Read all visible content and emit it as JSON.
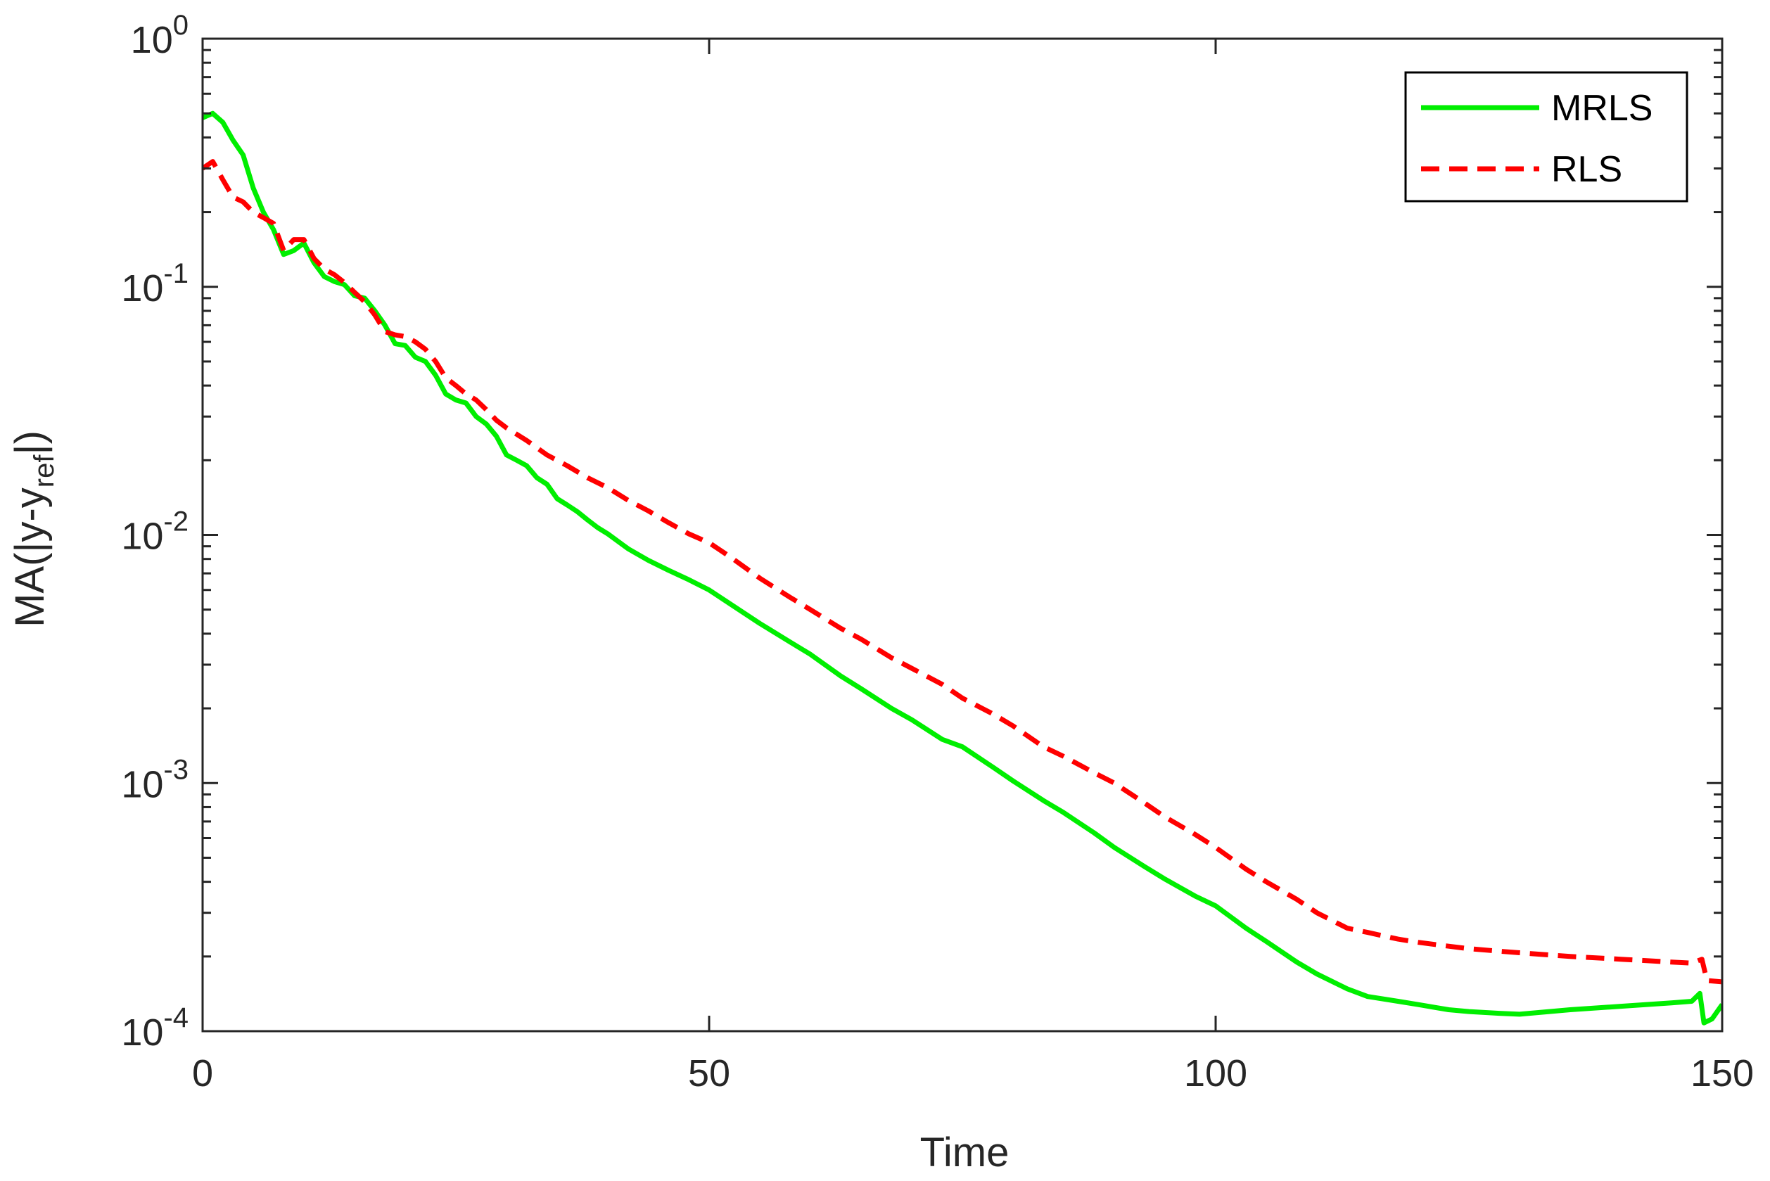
{
  "chart_data": {
    "type": "line",
    "title": "",
    "xlabel": "Time",
    "ylabel": {
      "main": "MA(|y-y",
      "sub": "ref",
      "tail": "|)"
    },
    "xlim": [
      0,
      150
    ],
    "ylim": [
      0.0001,
      1
    ],
    "yscale": "log",
    "grid": false,
    "legend_position": "top-right",
    "x_ticks": [
      {
        "value": 0,
        "label": "0"
      },
      {
        "value": 50,
        "label": "50"
      },
      {
        "value": 100,
        "label": "100"
      },
      {
        "value": 150,
        "label": "150"
      }
    ],
    "y_ticks": [
      {
        "value": 1,
        "base": "10",
        "exp": "0"
      },
      {
        "value": 0.1,
        "base": "10",
        "exp": "-1"
      },
      {
        "value": 0.01,
        "base": "10",
        "exp": "-2"
      },
      {
        "value": 0.001,
        "base": "10",
        "exp": "-3"
      },
      {
        "value": 0.0001,
        "base": "10",
        "exp": "-4"
      }
    ],
    "series": [
      {
        "name": "MRLS",
        "color": "#00ee00",
        "dash": "solid",
        "points": [
          [
            0,
            0.48
          ],
          [
            1,
            0.5
          ],
          [
            2,
            0.46
          ],
          [
            3,
            0.39
          ],
          [
            4,
            0.34
          ],
          [
            5,
            0.25
          ],
          [
            6,
            0.2
          ],
          [
            7,
            0.17
          ],
          [
            8,
            0.135
          ],
          [
            9,
            0.14
          ],
          [
            10,
            0.15
          ],
          [
            11,
            0.125
          ],
          [
            12,
            0.11
          ],
          [
            13,
            0.105
          ],
          [
            14,
            0.102
          ],
          [
            15,
            0.092
          ],
          [
            16,
            0.09
          ],
          [
            17,
            0.08
          ],
          [
            18,
            0.07
          ],
          [
            19,
            0.059
          ],
          [
            20,
            0.058
          ],
          [
            21,
            0.052
          ],
          [
            22,
            0.05
          ],
          [
            23,
            0.044
          ],
          [
            24,
            0.037
          ],
          [
            25,
            0.035
          ],
          [
            26,
            0.034
          ],
          [
            27,
            0.03
          ],
          [
            28,
            0.028
          ],
          [
            29,
            0.025
          ],
          [
            30,
            0.021
          ],
          [
            31,
            0.02
          ],
          [
            32,
            0.019
          ],
          [
            33,
            0.017
          ],
          [
            34,
            0.016
          ],
          [
            35,
            0.014
          ],
          [
            36,
            0.0132
          ],
          [
            37,
            0.0124
          ],
          [
            38,
            0.0115
          ],
          [
            39,
            0.0107
          ],
          [
            40,
            0.0101
          ],
          [
            42,
            0.0088
          ],
          [
            44,
            0.0079
          ],
          [
            46,
            0.0072
          ],
          [
            48,
            0.0066
          ],
          [
            50,
            0.006
          ],
          [
            52,
            0.0053
          ],
          [
            55,
            0.0044
          ],
          [
            58,
            0.0037
          ],
          [
            60,
            0.0033
          ],
          [
            63,
            0.0027
          ],
          [
            65,
            0.0024
          ],
          [
            68,
            0.002
          ],
          [
            70,
            0.0018
          ],
          [
            73,
            0.0015
          ],
          [
            75,
            0.0014
          ],
          [
            78,
            0.00116
          ],
          [
            80,
            0.00102
          ],
          [
            83,
            0.00085
          ],
          [
            85,
            0.00076
          ],
          [
            88,
            0.00063
          ],
          [
            90,
            0.00055
          ],
          [
            93,
            0.00046
          ],
          [
            95,
            0.00041
          ],
          [
            98,
            0.00035
          ],
          [
            100,
            0.00032
          ],
          [
            103,
            0.00026
          ],
          [
            105,
            0.00023
          ],
          [
            108,
            0.00019
          ],
          [
            110,
            0.00017
          ],
          [
            113,
            0.000148
          ],
          [
            115,
            0.000138
          ],
          [
            118,
            0.000132
          ],
          [
            120,
            0.000128
          ],
          [
            123,
            0.000122
          ],
          [
            125,
            0.00012
          ],
          [
            128,
            0.000118
          ],
          [
            130,
            0.000117
          ],
          [
            135,
            0.000122
          ],
          [
            140,
            0.000126
          ],
          [
            145,
            0.00013
          ],
          [
            147,
            0.000132
          ],
          [
            147.8,
            0.000142
          ],
          [
            148.2,
            0.000108
          ],
          [
            149,
            0.000112
          ],
          [
            150,
            0.000128
          ]
        ]
      },
      {
        "name": "RLS",
        "color": "#ff0000",
        "dash": "dashed",
        "points": [
          [
            0,
            0.3
          ],
          [
            1,
            0.32
          ],
          [
            2,
            0.27
          ],
          [
            3,
            0.23
          ],
          [
            4,
            0.22
          ],
          [
            5,
            0.2
          ],
          [
            6,
            0.19
          ],
          [
            7,
            0.18
          ],
          [
            8,
            0.14
          ],
          [
            9,
            0.155
          ],
          [
            10,
            0.155
          ],
          [
            11,
            0.13
          ],
          [
            12,
            0.118
          ],
          [
            13,
            0.112
          ],
          [
            14,
            0.104
          ],
          [
            15,
            0.095
          ],
          [
            16,
            0.087
          ],
          [
            17,
            0.077
          ],
          [
            18,
            0.066
          ],
          [
            19,
            0.064
          ],
          [
            20,
            0.063
          ],
          [
            21,
            0.06
          ],
          [
            22,
            0.056
          ],
          [
            23,
            0.05
          ],
          [
            24,
            0.043
          ],
          [
            25,
            0.04
          ],
          [
            26,
            0.037
          ],
          [
            27,
            0.035
          ],
          [
            28,
            0.032
          ],
          [
            29,
            0.029
          ],
          [
            30,
            0.027
          ],
          [
            32,
            0.024
          ],
          [
            34,
            0.021
          ],
          [
            36,
            0.019
          ],
          [
            38,
            0.017
          ],
          [
            40,
            0.0155
          ],
          [
            42,
            0.0138
          ],
          [
            44,
            0.0125
          ],
          [
            46,
            0.0112
          ],
          [
            48,
            0.0101
          ],
          [
            50,
            0.0093
          ],
          [
            52,
            0.0082
          ],
          [
            55,
            0.0067
          ],
          [
            58,
            0.0056
          ],
          [
            60,
            0.005
          ],
          [
            63,
            0.0042
          ],
          [
            65,
            0.0038
          ],
          [
            68,
            0.0032
          ],
          [
            70,
            0.0029
          ],
          [
            73,
            0.0025
          ],
          [
            75,
            0.0022
          ],
          [
            78,
            0.0019
          ],
          [
            80,
            0.0017
          ],
          [
            83,
            0.0014
          ],
          [
            85,
            0.00128
          ],
          [
            88,
            0.0011
          ],
          [
            90,
            0.001
          ],
          [
            93,
            0.00083
          ],
          [
            95,
            0.00073
          ],
          [
            98,
            0.00062
          ],
          [
            100,
            0.00055
          ],
          [
            103,
            0.00045
          ],
          [
            105,
            0.0004
          ],
          [
            108,
            0.00034
          ],
          [
            110,
            0.0003
          ],
          [
            113,
            0.00026
          ],
          [
            115,
            0.00025
          ],
          [
            118,
            0.000235
          ],
          [
            120,
            0.000228
          ],
          [
            123,
            0.00022
          ],
          [
            125,
            0.000215
          ],
          [
            128,
            0.00021
          ],
          [
            130,
            0.000207
          ],
          [
            135,
            0.0002
          ],
          [
            140,
            0.000195
          ],
          [
            145,
            0.00019
          ],
          [
            147,
            0.000188
          ],
          [
            148,
            0.000195
          ],
          [
            148.5,
            0.00016
          ],
          [
            150,
            0.000158
          ]
        ]
      }
    ]
  }
}
